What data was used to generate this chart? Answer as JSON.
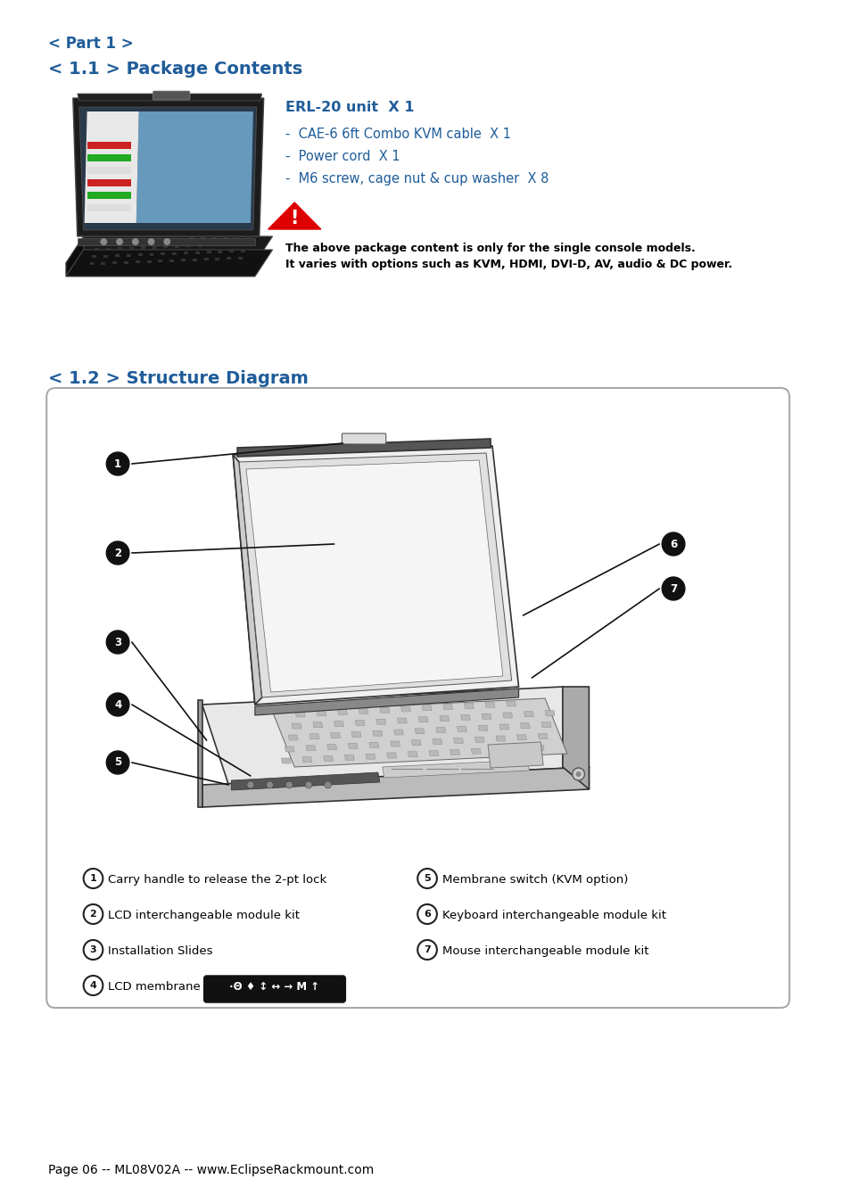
{
  "bg_color": "#ffffff",
  "title_color": "#1f5c99",
  "black_text": "#000000",
  "header1": "< Part 1 >",
  "header2": "< 1.1 > Package Contents",
  "section2_title": "< 1.2 > Structure Diagram",
  "product_title": "ERL-20 unit  X 1",
  "bullet1": "-  CAE-6 6ft Combo KVM cable  X 1",
  "bullet2": "-  Power cord  X 1",
  "bullet3": "-  M6 screw, cage nut & cup washer  X 8",
  "warning_text1": "The above package content is only for the single console models.",
  "warning_text2": "It varies with options such as KVM, HDMI, DVI-D, AV, audio & DC power.",
  "legend1": "Carry handle to release the 2-pt lock",
  "legend2": "LCD interchangeable module kit",
  "legend3": "Installation Slides",
  "legend4": "LCD membrane",
  "legend5": "Membrane switch (KVM option)",
  "legend6": "Keyboard interchangeable module kit",
  "legend7": "Mouse interchangeable module kit",
  "footer": "Page 06 -- ML08V02A -- www.EclipseRackmount.com",
  "membrane_symbols": "·Θ ♦ ↕ ↔ → M ↑"
}
